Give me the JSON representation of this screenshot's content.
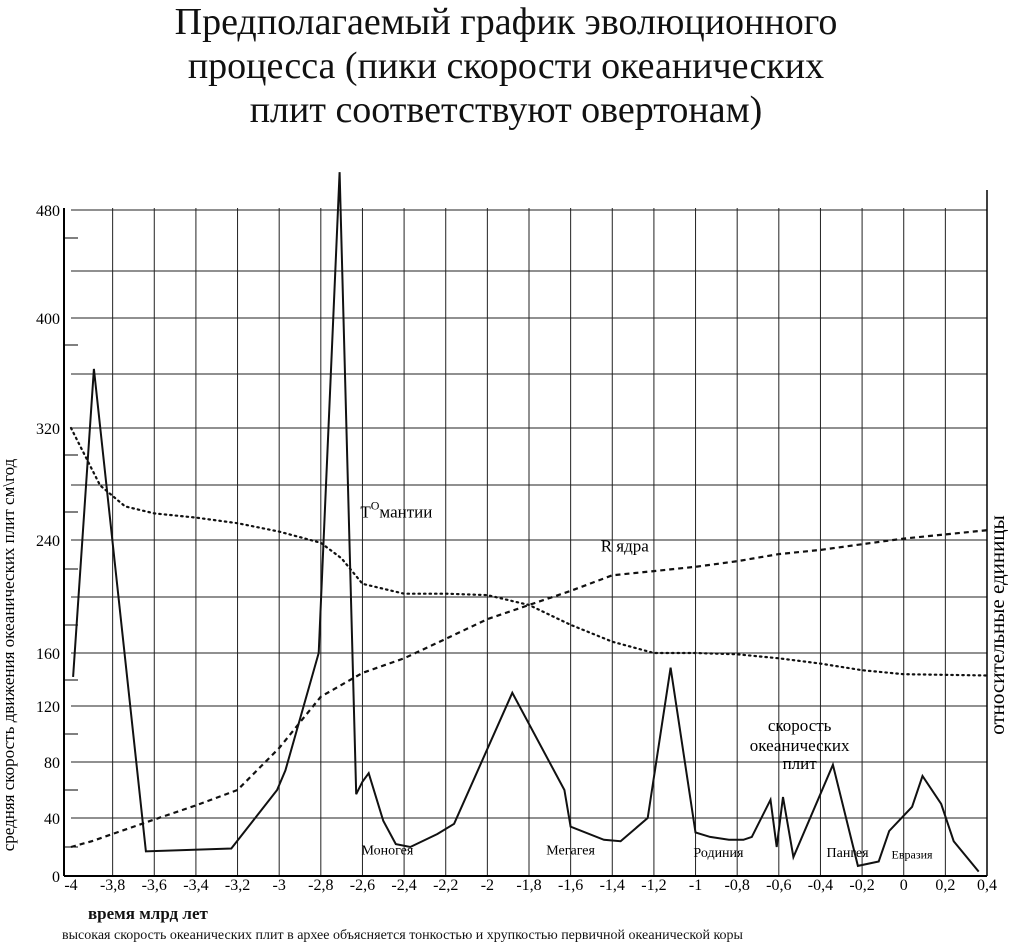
{
  "title_lines": [
    "Предполагаемый график эволюционного",
    "процесса (пики скорости океанических",
    "плит соответствуют овертонам)"
  ],
  "caption": "высокая скорость океанических плит в архее объясняется тонкостью и хрупкостью первичной океанической коры",
  "chart_data": {
    "type": "line",
    "title": "Предполагаемый график эволюционного процесса (пики скорости океанических плит соответствуют овертонам)",
    "xlabel": "время млрд лет",
    "ylabel": "средняя скорость движения океанических плит см\\год",
    "y2label": "относительные единицы",
    "xlim": [
      -4,
      0.4
    ],
    "ylim": [
      0,
      480
    ],
    "x_ticks": [
      -4,
      -3.8,
      -3.6,
      -3.4,
      -3.2,
      -3,
      -2.8,
      -2.6,
      -2.4,
      -2.2,
      -2,
      -1.8,
      -1.6,
      -1.4,
      -1.2,
      -1,
      -0.8,
      -0.6,
      -0.4,
      -0.2,
      0,
      0.2,
      0.4
    ],
    "x_tick_labels": [
      "-4",
      "-3,8",
      "-3,6",
      "-3,4",
      "-3,2",
      "-3",
      "-2,8",
      "-2,6",
      "-2,4",
      "-2,2",
      "-2",
      "-1,8",
      "-1,6",
      "-1,4",
      "-1,2",
      "-1",
      "-0,8",
      "-0,6",
      "-0,4",
      "-0,2",
      "0",
      "0,2",
      "0,4"
    ],
    "y_ticks": [
      0,
      40,
      80,
      120,
      160,
      240,
      320,
      400,
      480
    ],
    "grid": true,
    "series": [
      {
        "name": "скорость океанических плит",
        "style": "solid",
        "points": [
          [
            -3.99,
            142
          ],
          [
            -3.89,
            363
          ],
          [
            -3.64,
            17
          ],
          [
            -3.23,
            19
          ],
          [
            -3.01,
            60
          ],
          [
            -2.97,
            74
          ],
          [
            -2.81,
            160
          ],
          [
            -2.71,
            508
          ],
          [
            -2.63,
            57
          ],
          [
            -2.6,
            66
          ],
          [
            -2.57,
            72
          ],
          [
            -2.5,
            38
          ],
          [
            -2.44,
            22
          ],
          [
            -2.37,
            20
          ],
          [
            -2.24,
            29
          ],
          [
            -2.16,
            36
          ],
          [
            -1.88,
            130
          ],
          [
            -1.63,
            60
          ],
          [
            -1.6,
            34
          ],
          [
            -1.44,
            25
          ],
          [
            -1.36,
            24
          ],
          [
            -1.23,
            40
          ],
          [
            -1.12,
            149
          ],
          [
            -1,
            30
          ],
          [
            -0.93,
            27
          ],
          [
            -0.84,
            25
          ],
          [
            -0.77,
            25
          ],
          [
            -0.73,
            27
          ],
          [
            -0.64,
            53
          ],
          [
            -0.61,
            20
          ],
          [
            -0.58,
            55
          ],
          [
            -0.53,
            13
          ],
          [
            -0.34,
            78
          ],
          [
            -0.22,
            7
          ],
          [
            -0.12,
            10
          ],
          [
            -0.07,
            31
          ],
          [
            0.04,
            48
          ],
          [
            0.09,
            70
          ],
          [
            0.18,
            50
          ],
          [
            0.24,
            24
          ],
          [
            0.36,
            3
          ]
        ]
      },
      {
        "name": "Т⁰мантии",
        "style": "dotted",
        "points": [
          [
            -4,
            320
          ],
          [
            -3.86,
            279
          ],
          [
            -3.74,
            264
          ],
          [
            -3.6,
            259
          ],
          [
            -3.4,
            256
          ],
          [
            -3.2,
            252
          ],
          [
            -3,
            246
          ],
          [
            -2.8,
            238
          ],
          [
            -2.7,
            227
          ],
          [
            -2.6,
            209
          ],
          [
            -2.4,
            202
          ],
          [
            -2.2,
            202
          ],
          [
            -2,
            201
          ],
          [
            -1.8,
            194
          ],
          [
            -1.6,
            180
          ],
          [
            -1.4,
            168
          ],
          [
            -1.2,
            160
          ],
          [
            -1,
            160
          ],
          [
            -0.8,
            159
          ],
          [
            -0.6,
            156
          ],
          [
            -0.4,
            152
          ],
          [
            -0.2,
            147
          ],
          [
            0,
            144
          ],
          [
            0.4,
            143
          ]
        ]
      },
      {
        "name": "R ядра",
        "style": "dashed",
        "points": [
          [
            -4,
            20
          ],
          [
            -3.9,
            24
          ],
          [
            -3.6,
            39
          ],
          [
            -3.4,
            49
          ],
          [
            -3.2,
            60
          ],
          [
            -3,
            90
          ],
          [
            -2.8,
            127
          ],
          [
            -2.6,
            145
          ],
          [
            -2.4,
            156
          ],
          [
            -2.2,
            170
          ],
          [
            -2,
            184
          ],
          [
            -1.8,
            194
          ],
          [
            -1.6,
            204
          ],
          [
            -1.4,
            215
          ],
          [
            -1.2,
            218
          ],
          [
            -1,
            221
          ],
          [
            -0.8,
            225
          ],
          [
            -0.6,
            230
          ],
          [
            -0.4,
            233
          ],
          [
            -0.2,
            237
          ],
          [
            0,
            241
          ],
          [
            0.4,
            247
          ]
        ]
      }
    ],
    "annotations": [
      {
        "text": "Моногея",
        "x": -2.48,
        "y": 15
      },
      {
        "text": "Мегагея",
        "x": -1.6,
        "y": 15
      },
      {
        "text": "Родиния",
        "x": -0.89,
        "y": 13
      },
      {
        "text": "Пангея",
        "x": -0.27,
        "y": 13
      },
      {
        "text": "Евразия",
        "x": 0.04,
        "y": 12
      },
      {
        "text": "скорость",
        "x": -0.5,
        "y": 102
      },
      {
        "text": "океанических",
        "x": -0.5,
        "y": 88
      },
      {
        "text": "плит",
        "x": -0.5,
        "y": 75
      },
      {
        "text": "R ядра",
        "x": -1.34,
        "y": 232
      },
      {
        "text": "Т",
        "x": -2.61,
        "y": 256,
        "superscript": "О",
        "suffix": "мантии"
      }
    ]
  }
}
